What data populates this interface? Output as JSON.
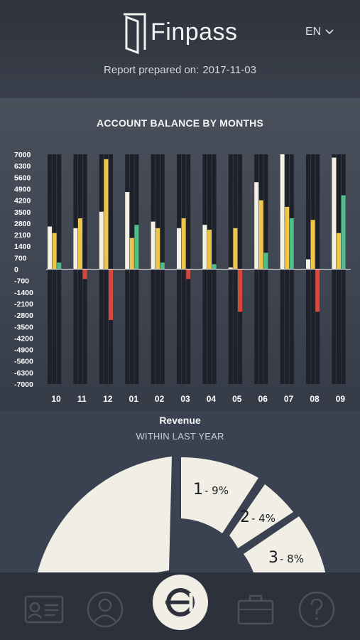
{
  "header": {
    "brand": "Finpass",
    "language": "EN",
    "report_label": "Report prepared on:",
    "report_date": "2017-11-03"
  },
  "icons": {
    "logo": "door-logo-icon",
    "language": "chevron-down-icon",
    "nav": [
      "id-card-icon",
      "profile-icon",
      "finpass-circle-icon",
      "briefcase-icon",
      "question-icon"
    ]
  },
  "colors": {
    "series_1": "#f3f1e4",
    "series_2": "#f0c64a",
    "series_3": "#4dbf8a",
    "negative": "#d8473b",
    "column_bg": "#1e2129"
  },
  "chart_data": {
    "type": "bar",
    "title": "ACCOUNT BALANCE BY MONTHS",
    "categories": [
      "10",
      "11",
      "12",
      "01",
      "02",
      "03",
      "04",
      "05",
      "06",
      "07",
      "08",
      "09"
    ],
    "y_ticks": [
      7000,
      6300,
      5600,
      4900,
      4200,
      3500,
      2800,
      2100,
      1400,
      700,
      0,
      -700,
      -1400,
      -2100,
      -2800,
      -3500,
      -4200,
      -4900,
      -5600,
      -6300,
      -7000
    ],
    "ylim": [
      -7000,
      7000
    ],
    "series": [
      {
        "values": [
          2600,
          2500,
          3500,
          4700,
          2900,
          2500,
          2700,
          100,
          5300,
          7000,
          600,
          6800
        ]
      },
      {
        "values": [
          2200,
          3100,
          6700,
          1900,
          2500,
          3100,
          2400,
          2500,
          4200,
          3800,
          3000,
          2200
        ]
      },
      {
        "values": [
          400,
          -600,
          -3100,
          2700,
          400,
          -600,
          300,
          -2600,
          1000,
          3100,
          -2600,
          4500
        ]
      }
    ]
  },
  "revenue": {
    "title": "Revenue",
    "subtitle": "WITHIN LAST YEAR",
    "segments": [
      {
        "num": "1",
        "pct": "- 9%"
      },
      {
        "num": "2",
        "pct": "- 4%"
      },
      {
        "num": "3",
        "pct": "- 8%"
      }
    ]
  }
}
